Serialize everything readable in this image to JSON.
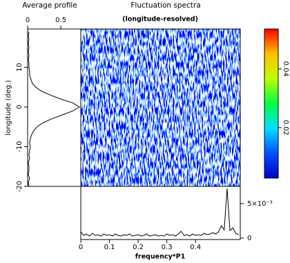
{
  "chart_data": [
    {
      "type": "line",
      "orientation": "vertical",
      "title": "Average profile",
      "ylabel": "longitude (deg.)",
      "x": [
        -20,
        -19,
        -18,
        -17,
        -16,
        -15,
        -14,
        -13,
        -12,
        -11,
        -10,
        -9,
        -8,
        -7,
        -6,
        -5,
        -4,
        -3,
        -2,
        -1,
        0,
        1,
        2,
        3,
        4,
        5,
        6,
        7,
        8,
        9,
        10,
        11,
        12,
        13,
        14,
        15,
        16,
        17,
        18,
        19
      ],
      "values": [
        0.02,
        0.01,
        0.03,
        0.01,
        0.02,
        0.02,
        0.01,
        0.03,
        0.02,
        0.03,
        0.04,
        0.03,
        0.04,
        0.06,
        0.09,
        0.14,
        0.23,
        0.36,
        0.52,
        0.68,
        0.78,
        0.68,
        0.5,
        0.34,
        0.21,
        0.12,
        0.07,
        0.05,
        0.03,
        0.03,
        0.02,
        0.02,
        0.01,
        0.02,
        0.01,
        0.02,
        0.01,
        0.02,
        0.01,
        0.02
      ],
      "color": "#000000",
      "xlim": [
        0,
        0.8
      ],
      "xticks": [
        0,
        0.5
      ],
      "ylim": [
        -20,
        19.65
      ],
      "yticks": [
        -20,
        -10,
        0,
        10
      ]
    },
    {
      "type": "heatmap",
      "title": "Fluctuation spectra",
      "subtitle": "(longitude-resolved)",
      "colormap": [
        "#0000c8",
        "#0050ff",
        "#00e0ff",
        "#00ff40",
        "#c0ff00",
        "#ffc000",
        "#ff0000"
      ],
      "clim": [
        0.0028,
        0.0536
      ],
      "cticks": [
        0.02,
        0.04
      ]
    },
    {
      "type": "line",
      "xlabel": "frequency*P1",
      "x": [
        0,
        0.01,
        0.02,
        0.03,
        0.04,
        0.05,
        0.06,
        0.07,
        0.08,
        0.09,
        0.1,
        0.11,
        0.12,
        0.13,
        0.14,
        0.15,
        0.16,
        0.17,
        0.18,
        0.19,
        0.2,
        0.21,
        0.22,
        0.23,
        0.24,
        0.25,
        0.26,
        0.27,
        0.28,
        0.29,
        0.3,
        0.31,
        0.32,
        0.33,
        0.34,
        0.35,
        0.36,
        0.37,
        0.38,
        0.39,
        0.4,
        0.41,
        0.42,
        0.43,
        0.44,
        0.45,
        0.46,
        0.47,
        0.48,
        0.49,
        0.5,
        0.51,
        0.52,
        0.53,
        0.54,
        0.55
      ],
      "values": [
        0.0009,
        0.0004,
        0.0006,
        0.0003,
        0.0007,
        0.0004,
        0.0005,
        0.0003,
        0.0006,
        0.0004,
        0.0005,
        0.0003,
        0.0006,
        0.0004,
        0.0003,
        0.0005,
        0.0004,
        0.0006,
        0.0003,
        0.0004,
        0.0005,
        0.0003,
        0.0004,
        0.0006,
        0.0003,
        0.0004,
        0.0005,
        0.0003,
        0.0004,
        0.0003,
        0.0006,
        0.0004,
        0.0005,
        0.0003,
        0.0006,
        0.001,
        0.0004,
        0.0005,
        0.0003,
        0.0006,
        0.0004,
        0.0005,
        0.0004,
        0.0007,
        0.0005,
        0.0006,
        0.0008,
        0.0006,
        0.0009,
        0.0018,
        0.0012,
        0.0072,
        0.0011,
        0.0015,
        0.0007,
        0.0005
      ],
      "color": "#000000",
      "xlim": [
        0,
        0.556
      ],
      "xticks": [
        0,
        0.1,
        0.2,
        0.3,
        0.4
      ],
      "ylim": [
        0,
        0.0075
      ],
      "yticks": [
        0,
        {
          "value": 0.005,
          "label": "5×10⁻³"
        }
      ]
    }
  ]
}
